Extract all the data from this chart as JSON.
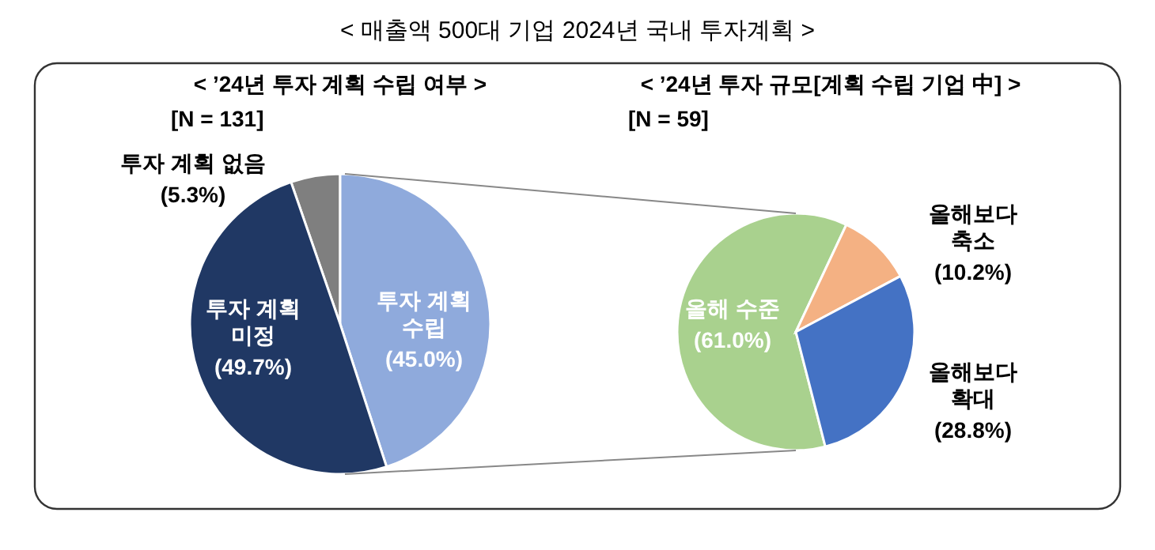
{
  "chart_data": [
    {
      "type": "pie",
      "title": "< ’24년 투자 계획 수립 여부 >",
      "subtitle": "[N = 131]",
      "annotations": [
        "< 매출액 500대 기업 2024년 국내 투자계획 >"
      ],
      "categories": [
        "투자 계획 없음",
        "투자 계획\n수립",
        "투자 계획\n미정"
      ],
      "values": [
        5.3,
        45.0,
        49.7
      ],
      "value_labels": [
        "(5.3%)",
        "(45.0%)",
        "(49.7%)"
      ],
      "colors": [
        "#7f7f7f",
        "#8faadc",
        "#203864"
      ]
    },
    {
      "type": "pie",
      "title": "< ’24년 투자 규모[계획 수립 기업 中] >",
      "subtitle": "[N = 59]",
      "categories": [
        "올해 수준",
        "올해보다\n축소",
        "올해보다\n확대"
      ],
      "values": [
        61.0,
        10.2,
        28.8
      ],
      "value_labels": [
        "(61.0%)",
        "(10.2%)",
        "(28.8%)"
      ],
      "colors": [
        "#a9d18e",
        "#f4b183",
        "#4472c4"
      ]
    }
  ]
}
